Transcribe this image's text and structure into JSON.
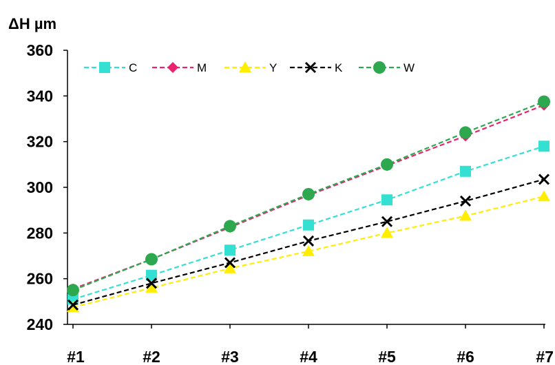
{
  "chart_data": {
    "type": "line",
    "title": "",
    "xlabel": "",
    "ylabel": "ΔH µm",
    "ylim": [
      240,
      360
    ],
    "yticks": [
      "240",
      "260",
      "280",
      "300",
      "320",
      "340",
      "360"
    ],
    "categories": [
      "#1",
      "#2",
      "#3",
      "#4",
      "#5",
      "#6",
      "#7"
    ],
    "grid": false,
    "legend_position": "top-left",
    "series": [
      {
        "name": "C",
        "values": [
          251,
          261.5,
          272.5,
          283.5,
          294.5,
          307,
          318
        ],
        "color": "#33e0d2",
        "marker": "square"
      },
      {
        "name": "M",
        "values": [
          255.5,
          268.5,
          282.5,
          296.5,
          309.5,
          322.5,
          336
        ],
        "color": "#e8246e",
        "marker": "diamond"
      },
      {
        "name": "Y",
        "values": [
          247.5,
          256,
          264.5,
          272,
          280,
          287.5,
          296
        ],
        "color": "#ffee00",
        "marker": "triangle"
      },
      {
        "name": "K",
        "values": [
          248.5,
          258,
          267,
          276.5,
          285,
          294,
          303.5
        ],
        "color": "#000000",
        "marker": "x"
      },
      {
        "name": "W",
        "values": [
          255,
          268.5,
          283,
          297,
          310,
          324,
          337.5
        ],
        "color": "#2da84f",
        "marker": "circle"
      }
    ]
  }
}
